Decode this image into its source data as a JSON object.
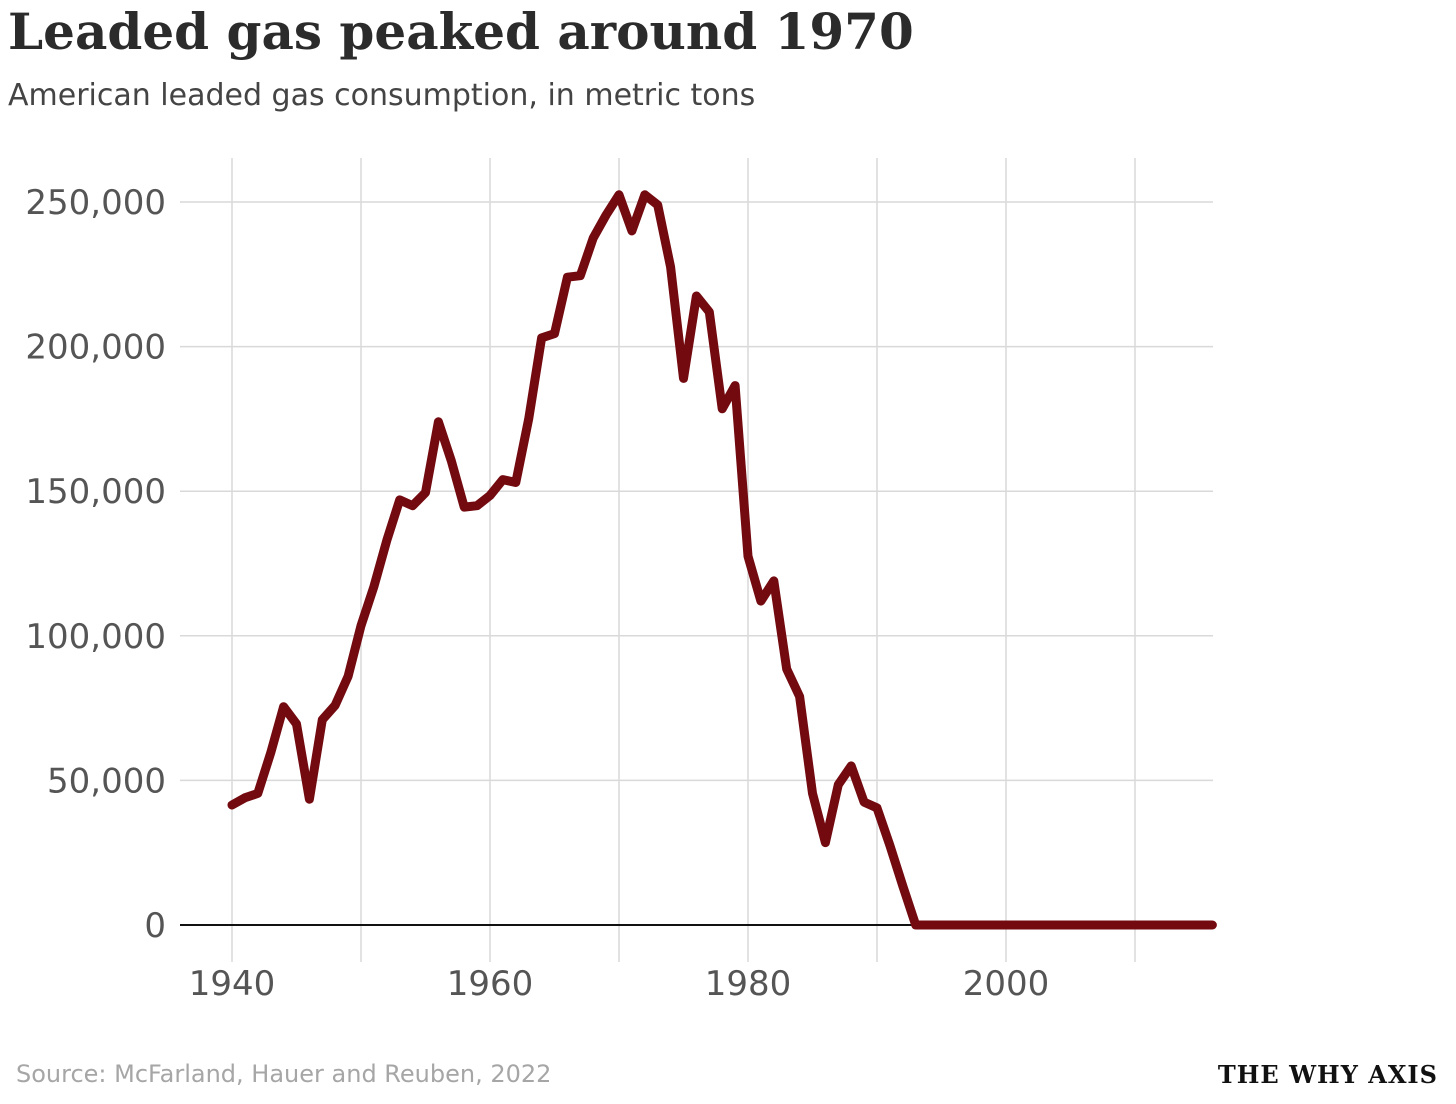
{
  "title": "Leaded gas peaked around 1970",
  "subtitle": "American leaded gas consumption, in metric tons",
  "source": "Source: McFarland, Hauer and Reuben, 2022",
  "brand": "THE WHY AXIS",
  "colors": {
    "line": "#730a10",
    "grid": "#d9d9d9",
    "zero_line": "#111111",
    "tick_text": "#555555",
    "title": "#2b2b2b",
    "source": "#a6a6a6"
  },
  "chart_data": {
    "type": "line",
    "title": "Leaded gas peaked around 1970",
    "subtitle": "American leaded gas consumption, in metric tons",
    "xlabel": "",
    "ylabel": "",
    "xlim": [
      1936,
      2016
    ],
    "ylim": [
      -12000,
      265000
    ],
    "x_ticks": [
      1940,
      1960,
      1980,
      2000
    ],
    "x_tick_labels": [
      "1940",
      "1960",
      "1980",
      "2000"
    ],
    "x_gridlines": [
      1940,
      1950,
      1960,
      1970,
      1980,
      1990,
      2000,
      2010
    ],
    "y_ticks": [
      0,
      50000,
      100000,
      150000,
      200000,
      250000
    ],
    "y_tick_labels": [
      "0",
      "50,000",
      "100,000",
      "150,000",
      "200,000",
      "250,000"
    ],
    "grid": true,
    "legend": "none",
    "x": [
      1940,
      1941,
      1942,
      1943,
      1944,
      1945,
      1946,
      1947,
      1948,
      1949,
      1950,
      1951,
      1952,
      1953,
      1954,
      1955,
      1956,
      1957,
      1958,
      1959,
      1960,
      1961,
      1962,
      1963,
      1964,
      1965,
      1966,
      1967,
      1968,
      1969,
      1970,
      1971,
      1972,
      1973,
      1974,
      1975,
      1976,
      1977,
      1978,
      1979,
      1980,
      1981,
      1982,
      1983,
      1984,
      1985,
      1986,
      1987,
      1988,
      1989,
      1990,
      1991,
      1992,
      1993,
      1994,
      1995,
      1996,
      1997,
      1998,
      1999,
      2000,
      2001,
      2002,
      2003,
      2004,
      2005,
      2006,
      2007,
      2008,
      2009,
      2010,
      2011,
      2012,
      2013,
      2014,
      2015,
      2016
    ],
    "series": [
      {
        "values": [
          41500,
          44000,
          45500,
          59500,
          75500,
          69500,
          43500,
          71000,
          76000,
          86000,
          103500,
          117000,
          133000,
          147000,
          145000,
          149500,
          174000,
          160500,
          144500,
          145000,
          148500,
          154000,
          153000,
          175000,
          203000,
          204500,
          224000,
          224500,
          237500,
          245500,
          252500,
          240000,
          252500,
          249000,
          227500,
          189000,
          217500,
          212000,
          178500,
          186500,
          127500,
          112000,
          119000,
          88500,
          79000,
          45500,
          28500,
          48500,
          55000,
          42500,
          40500,
          27500,
          13500,
          0,
          0,
          0,
          0,
          0,
          0,
          0,
          0,
          0,
          0,
          0,
          0,
          0,
          0,
          0,
          0,
          0,
          0,
          0,
          0,
          0,
          0,
          0,
          0
        ]
      }
    ]
  }
}
